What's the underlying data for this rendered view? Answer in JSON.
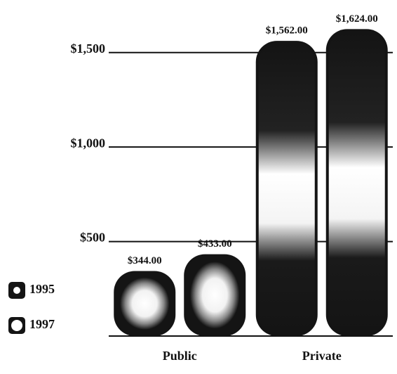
{
  "chart_data": {
    "type": "bar",
    "categories": [
      "Public",
      "Private"
    ],
    "series": [
      {
        "name": "1995",
        "color": "#141414",
        "values": [
          344,
          1562
        ],
        "value_labels": [
          "$344.00",
          "$1,562.00"
        ]
      },
      {
        "name": "1997",
        "color": "#141414",
        "values": [
          433,
          1624
        ],
        "value_labels": [
          "$433.00",
          "$1,624.00"
        ]
      }
    ],
    "ylim": [
      0,
      1700
    ],
    "yticks": [
      {
        "value": 500,
        "label": "$500"
      },
      {
        "value": 1000,
        "label": "$1,000"
      },
      {
        "value": 1500,
        "label": "$1,500"
      }
    ],
    "grid": true,
    "legend": "lower left"
  }
}
